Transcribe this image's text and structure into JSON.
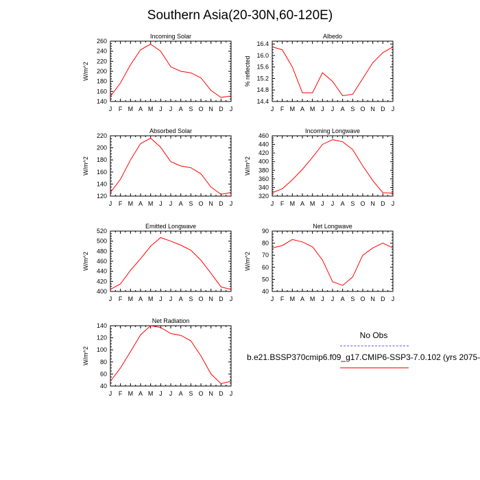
{
  "title": "Southern Asia(20-30N,60-120E)",
  "legend": {
    "obs_label": "No Obs",
    "model_label": "b.e21.BSSP370cmip6.f09_g17.CMIP6-SSP3-7.0.102 (yrs 2075-",
    "obs_color": "#5a5aff",
    "model_color": "#ff0000"
  },
  "chart_data": [
    {
      "type": "line",
      "title": "Incoming Solar",
      "ylabel": "W/m^2",
      "x": [
        "J",
        "F",
        "M",
        "A",
        "M",
        "J",
        "J",
        "A",
        "S",
        "O",
        "N",
        "D",
        "J"
      ],
      "ylim": [
        140,
        260
      ],
      "yticks": [
        140,
        160,
        180,
        200,
        220,
        240,
        260
      ],
      "series": [
        {
          "values": [
            150,
            177,
            213,
            243,
            254,
            240,
            209,
            200,
            197,
            187,
            162,
            148,
            151
          ],
          "color": "#ff0000"
        }
      ]
    },
    {
      "type": "line",
      "title": "Albedo",
      "ylabel": "% reflected",
      "x": [
        "J",
        "F",
        "M",
        "A",
        "M",
        "J",
        "J",
        "A",
        "S",
        "O",
        "N",
        "D",
        "J"
      ],
      "ylim": [
        14.4,
        16.5
      ],
      "yticks": [
        14.4,
        14.8,
        15.2,
        15.6,
        16.0,
        16.4
      ],
      "series": [
        {
          "values": [
            16.3,
            16.2,
            15.6,
            14.7,
            14.7,
            15.4,
            15.1,
            14.6,
            14.65,
            15.2,
            15.75,
            16.1,
            16.3
          ],
          "color": "#ff0000"
        }
      ]
    },
    {
      "type": "line",
      "title": "Absorbed Solar",
      "ylabel": "W/m^2",
      "x": [
        "J",
        "F",
        "M",
        "A",
        "M",
        "J",
        "J",
        "A",
        "S",
        "O",
        "N",
        "D",
        "J"
      ],
      "ylim": [
        120,
        220
      ],
      "yticks": [
        120,
        140,
        160,
        180,
        200,
        220
      ],
      "series": [
        {
          "values": [
            126,
            148,
            180,
            207,
            216,
            201,
            177,
            170,
            167,
            157,
            135,
            123,
            126
          ],
          "color": "#ff0000"
        }
      ]
    },
    {
      "type": "line",
      "title": "Incoming Longwave",
      "ylabel": "W/m^2",
      "x": [
        "J",
        "F",
        "M",
        "A",
        "M",
        "J",
        "J",
        "A",
        "S",
        "O",
        "N",
        "D",
        "J"
      ],
      "ylim": [
        320,
        460
      ],
      "yticks": [
        320,
        340,
        360,
        380,
        400,
        420,
        440,
        460
      ],
      "series": [
        {
          "values": [
            328,
            337,
            358,
            382,
            410,
            440,
            451,
            446,
            428,
            390,
            356,
            328,
            327
          ],
          "color": "#ff0000"
        }
      ]
    },
    {
      "type": "line",
      "title": "Emitted Longwave",
      "ylabel": "W/m^2",
      "x": [
        "J",
        "F",
        "M",
        "A",
        "M",
        "J",
        "J",
        "A",
        "S",
        "O",
        "N",
        "D",
        "J"
      ],
      "ylim": [
        400,
        520
      ],
      "yticks": [
        400,
        420,
        440,
        460,
        480,
        500,
        520
      ],
      "series": [
        {
          "values": [
            404,
            415,
            442,
            465,
            490,
            507,
            500,
            492,
            482,
            462,
            436,
            409,
            404
          ],
          "color": "#ff0000"
        }
      ]
    },
    {
      "type": "line",
      "title": "Net Longwave",
      "ylabel": "W/m^2",
      "x": [
        "J",
        "F",
        "M",
        "A",
        "M",
        "J",
        "J",
        "A",
        "S",
        "O",
        "N",
        "D",
        "J"
      ],
      "ylim": [
        40,
        90
      ],
      "yticks": [
        40,
        50,
        60,
        70,
        80,
        90
      ],
      "series": [
        {
          "values": [
            76,
            78,
            83,
            81,
            77,
            66,
            48,
            45,
            52,
            70,
            76,
            80,
            76
          ],
          "color": "#ff0000"
        }
      ]
    },
    {
      "type": "line",
      "title": "Net Radiation",
      "ylabel": "W/m^2",
      "x": [
        "J",
        "F",
        "M",
        "A",
        "M",
        "J",
        "J",
        "A",
        "S",
        "O",
        "N",
        "D",
        "J"
      ],
      "ylim": [
        40,
        140
      ],
      "yticks": [
        40,
        60,
        80,
        100,
        120,
        140
      ],
      "series": [
        {
          "values": [
            48,
            70,
            97,
            125,
            140,
            137,
            127,
            124,
            115,
            90,
            60,
            44,
            48
          ],
          "color": "#ff0000"
        }
      ]
    }
  ]
}
